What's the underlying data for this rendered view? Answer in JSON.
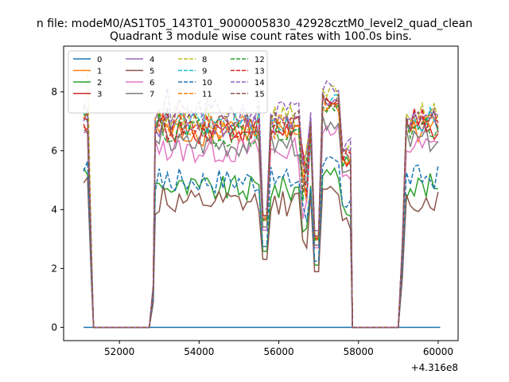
{
  "chart_data": {
    "type": "line",
    "suptitle": "n file: modeM0/AS1T05_143T01_9000005830_42928cztM0_level2_quad_clean",
    "title": "Quadrant 3 module wise count rates with 100.0s bins.",
    "xlabel": "",
    "ylabel": "",
    "x_offset_label": "+4.316e8",
    "xlim": [
      50600,
      60500
    ],
    "ylim": [
      -0.45,
      9.55
    ],
    "xticks": [
      52000,
      54000,
      56000,
      58000,
      60000
    ],
    "yticks": [
      0,
      2,
      4,
      6,
      8
    ],
    "grid": false,
    "legend": {
      "placement": "upper-left",
      "columns": 4
    },
    "segments": [
      [
        51100,
        51300
      ],
      [
        52850,
        57800
      ],
      [
        59100,
        60050
      ]
    ],
    "gaps_zero": [
      [
        51350,
        52750
      ],
      [
        57850,
        59000
      ]
    ],
    "series": [
      {
        "name": "0",
        "color": "#1f77b4",
        "dash": "solid",
        "level": 0.0,
        "start": 0.0
      },
      {
        "name": "1",
        "color": "#ff7f0e",
        "dash": "solid",
        "level": 6.6,
        "start": 6.8
      },
      {
        "name": "2",
        "color": "#2ca02c",
        "dash": "solid",
        "level": 4.7,
        "start": 5.4
      },
      {
        "name": "3",
        "color": "#d62728",
        "dash": "solid",
        "level": 6.7,
        "start": 6.9
      },
      {
        "name": "4",
        "color": "#9467bd",
        "dash": "solid",
        "level": 6.9,
        "start": 7.0
      },
      {
        "name": "5",
        "color": "#8c564b",
        "dash": "solid",
        "level": 4.2,
        "start": 4.9
      },
      {
        "name": "6",
        "color": "#e377c2",
        "dash": "solid",
        "level": 6.0,
        "start": 6.6
      },
      {
        "name": "7",
        "color": "#7f7f7f",
        "dash": "solid",
        "level": 6.2,
        "start": 6.7
      },
      {
        "name": "8",
        "color": "#bcbd22",
        "dash": "dashed",
        "level": 7.1,
        "start": 8.8
      },
      {
        "name": "9",
        "color": "#17becf",
        "dash": "dashed",
        "level": 6.9,
        "start": 7.3
      },
      {
        "name": "10",
        "color": "#1f77b4",
        "dash": "dashed",
        "level": 5.0,
        "start": 5.3
      },
      {
        "name": "11",
        "color": "#ff7f0e",
        "dash": "dashed",
        "level": 6.8,
        "start": 7.1
      },
      {
        "name": "12",
        "color": "#2ca02c",
        "dash": "dashed",
        "level": 6.6,
        "start": 7.2
      },
      {
        "name": "13",
        "color": "#d62728",
        "dash": "dashed",
        "level": 6.9,
        "start": 7.1
      },
      {
        "name": "14",
        "color": "#9467bd",
        "dash": "dashed",
        "level": 7.3,
        "start": 7.6
      },
      {
        "name": "15",
        "color": "#8c564b",
        "dash": "dashed",
        "level": 6.9,
        "start": 7.5
      }
    ]
  }
}
